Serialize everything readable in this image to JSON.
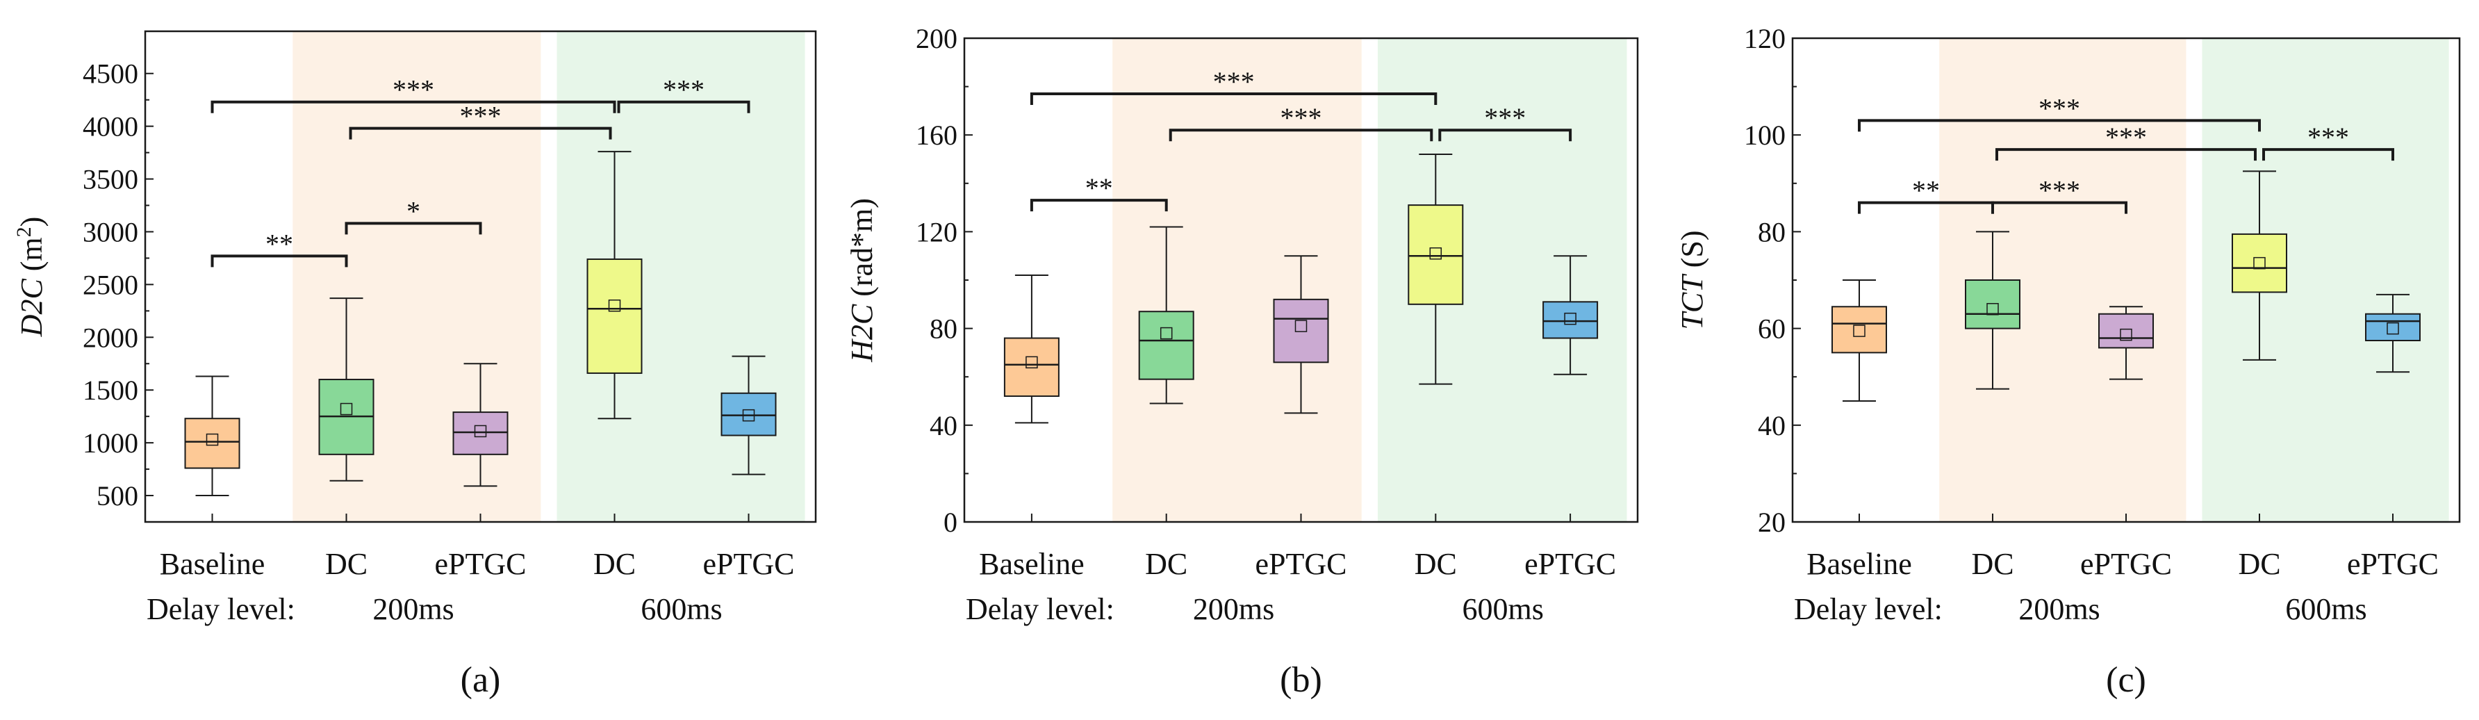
{
  "chart_data": [
    {
      "type": "box",
      "panel_label": "(a)",
      "ylabel_italic": "D2C",
      "ylabel_unit": " (m",
      "ylabel_sup": "2",
      "ylabel_close": ")",
      "ylim": [
        250,
        4900
      ],
      "yticks": [
        500,
        1000,
        1500,
        2000,
        2500,
        3000,
        3500,
        4000,
        4500
      ],
      "categories": [
        "Baseline",
        "DC",
        "ePTGC",
        "DC",
        "ePTGC"
      ],
      "delay_label": "Delay level:",
      "delay_groups": [
        "200ms",
        "600ms"
      ],
      "boxes": [
        {
          "min": 500,
          "q1": 760,
          "median": 1010,
          "q3": 1230,
          "max": 1630,
          "mean": 1030
        },
        {
          "min": 640,
          "q1": 890,
          "median": 1250,
          "q3": 1600,
          "max": 2370,
          "mean": 1320
        },
        {
          "min": 590,
          "q1": 890,
          "median": 1100,
          "q3": 1290,
          "max": 1750,
          "mean": 1110
        },
        {
          "min": 1230,
          "q1": 1660,
          "median": 2270,
          "q3": 2740,
          "max": 3760,
          "mean": 2300
        },
        {
          "min": 700,
          "q1": 1070,
          "median": 1260,
          "q3": 1470,
          "max": 1820,
          "mean": 1260
        }
      ],
      "significance": [
        {
          "from": 1,
          "to": 4,
          "y": 4230,
          "label": "***"
        },
        {
          "from": 2,
          "to": 4,
          "y": 3980,
          "label": "***"
        },
        {
          "from": 4,
          "to": 5,
          "y": 4230,
          "label": "***"
        },
        {
          "from": 1,
          "to": 2,
          "y": 2770,
          "label": "**"
        },
        {
          "from": 2,
          "to": 3,
          "y": 3080,
          "label": "*"
        }
      ]
    },
    {
      "type": "box",
      "panel_label": "(b)",
      "ylabel_italic": "H2C",
      "ylabel_unit": " (rad*m)",
      "ylim": [
        0,
        200
      ],
      "yticks": [
        0,
        40,
        80,
        120,
        160,
        200
      ],
      "categories": [
        "Baseline",
        "DC",
        "ePTGC",
        "DC",
        "ePTGC"
      ],
      "delay_label": "Delay level:",
      "delay_groups": [
        "200ms",
        "600ms"
      ],
      "boxes": [
        {
          "min": 41,
          "q1": 52,
          "median": 65,
          "q3": 76,
          "max": 102,
          "mean": 66
        },
        {
          "min": 49,
          "q1": 59,
          "median": 75,
          "q3": 87,
          "max": 122,
          "mean": 78
        },
        {
          "min": 45,
          "q1": 66,
          "median": 84,
          "q3": 92,
          "max": 110,
          "mean": 81
        },
        {
          "min": 57,
          "q1": 90,
          "median": 110,
          "q3": 131,
          "max": 152,
          "mean": 111
        },
        {
          "min": 61,
          "q1": 76,
          "median": 83,
          "q3": 91,
          "max": 110,
          "mean": 84
        }
      ],
      "significance": [
        {
          "from": 1,
          "to": 4,
          "y": 177,
          "label": "***"
        },
        {
          "from": 2,
          "to": 4,
          "y": 162,
          "label": "***"
        },
        {
          "from": 4,
          "to": 5,
          "y": 162,
          "label": "***"
        },
        {
          "from": 1,
          "to": 2,
          "y": 133,
          "label": "**"
        }
      ]
    },
    {
      "type": "box",
      "panel_label": "(c)",
      "ylabel_italic": "TCT",
      "ylabel_unit": " (S)",
      "ylim": [
        20,
        120
      ],
      "yticks": [
        20,
        40,
        60,
        80,
        100,
        120
      ],
      "categories": [
        "Baseline",
        "DC",
        "ePTGC",
        "DC",
        "ePTGC"
      ],
      "delay_label": "Delay level:",
      "delay_groups": [
        "200ms",
        "600ms"
      ],
      "boxes": [
        {
          "min": 45,
          "q1": 55,
          "median": 61,
          "q3": 64.5,
          "max": 70,
          "mean": 59.5
        },
        {
          "min": 47.5,
          "q1": 60,
          "median": 63,
          "q3": 70,
          "max": 80,
          "mean": 64
        },
        {
          "min": 49.5,
          "q1": 56,
          "median": 58,
          "q3": 63,
          "max": 64.5,
          "mean": 58.7
        },
        {
          "min": 53.5,
          "q1": 67.5,
          "median": 72.5,
          "q3": 79.5,
          "max": 92.5,
          "mean": 73.5
        },
        {
          "min": 51,
          "q1": 57.5,
          "median": 61.5,
          "q3": 63,
          "max": 67,
          "mean": 60
        }
      ],
      "significance": [
        {
          "from": 1,
          "to": 4,
          "y": 103,
          "label": "***"
        },
        {
          "from": 2,
          "to": 4,
          "y": 97,
          "label": "***"
        },
        {
          "from": 4,
          "to": 5,
          "y": 97,
          "label": "***"
        },
        {
          "from": 1,
          "to": 2,
          "y": 86,
          "label": "**"
        },
        {
          "from": 2,
          "to": 3,
          "y": 86,
          "label": "***"
        }
      ]
    }
  ],
  "colors": {
    "boxes": [
      "#fdc996",
      "#88d898",
      "#cbaad2",
      "#eef98a",
      "#6fb6e2"
    ],
    "shade_200ms": "#fdf1e5",
    "shade_600ms": "#e7f6e9",
    "line": "#1a1a1a"
  }
}
